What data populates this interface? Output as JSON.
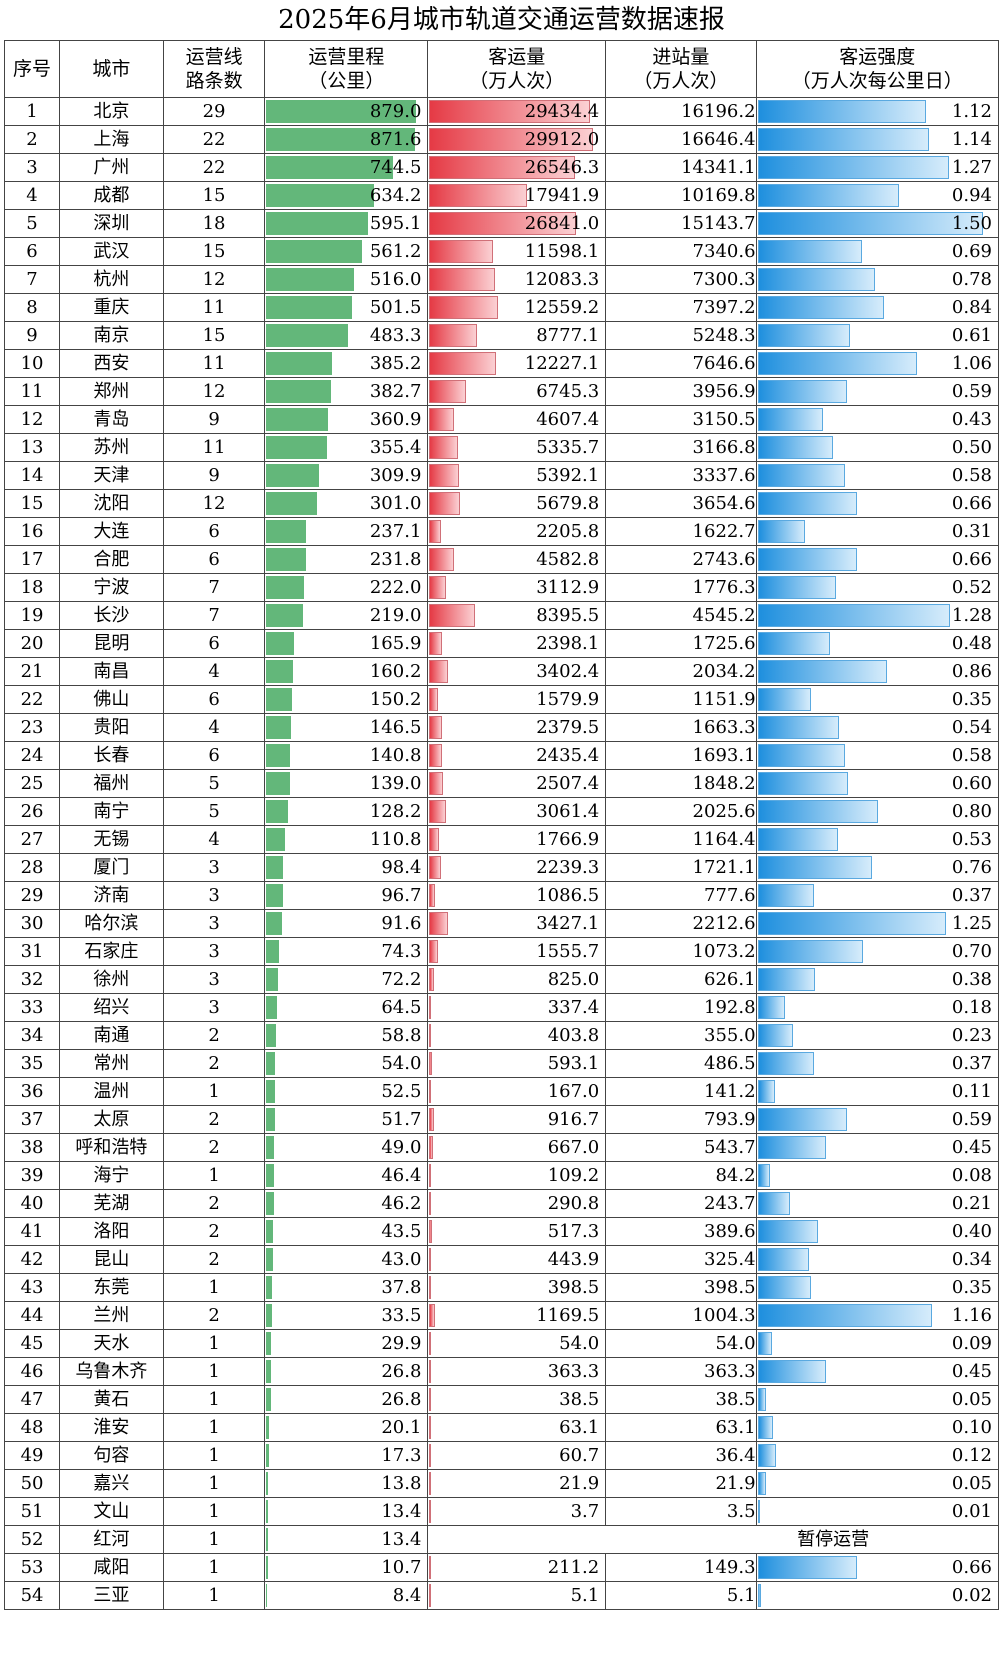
{
  "title": "2025年6月城市轨道交通运营数据速报",
  "headers": {
    "idx": "序号",
    "city": "城市",
    "lines_1": "运营线",
    "lines_2": "路条数",
    "mileage_1": "运营里程",
    "mileage_2": "（公里）",
    "ridership_1": "客运量",
    "ridership_2": "（万人次）",
    "entries_1": "进站量",
    "entries_2": "（万人次）",
    "intensity_1": "客运强度",
    "intensity_2": "（万人次每公里日）"
  },
  "scale": {
    "mileage_max": 879.0,
    "ridership_max": 29912.0,
    "intensity_max": 1.5
  },
  "colors": {
    "mileage_bar": "#63b77a",
    "ridership_bar": "#e53a45",
    "intensity_bar": "#1e8fde"
  },
  "rows": [
    {
      "idx": "1",
      "city": "北京",
      "lines": "29",
      "mileage": "879.0",
      "ridership": "29434.4",
      "entries": "16196.2",
      "intensity": "1.12"
    },
    {
      "idx": "2",
      "city": "上海",
      "lines": "22",
      "mileage": "871.6",
      "ridership": "29912.0",
      "entries": "16646.4",
      "intensity": "1.14"
    },
    {
      "idx": "3",
      "city": "广州",
      "lines": "22",
      "mileage": "744.5",
      "ridership": "26546.3",
      "entries": "14341.1",
      "intensity": "1.27"
    },
    {
      "idx": "4",
      "city": "成都",
      "lines": "15",
      "mileage": "634.2",
      "ridership": "17941.9",
      "entries": "10169.8",
      "intensity": "0.94"
    },
    {
      "idx": "5",
      "city": "深圳",
      "lines": "18",
      "mileage": "595.1",
      "ridership": "26841.0",
      "entries": "15143.7",
      "intensity": "1.50"
    },
    {
      "idx": "6",
      "city": "武汉",
      "lines": "15",
      "mileage": "561.2",
      "ridership": "11598.1",
      "entries": "7340.6",
      "intensity": "0.69"
    },
    {
      "idx": "7",
      "city": "杭州",
      "lines": "12",
      "mileage": "516.0",
      "ridership": "12083.3",
      "entries": "7300.3",
      "intensity": "0.78"
    },
    {
      "idx": "8",
      "city": "重庆",
      "lines": "11",
      "mileage": "501.5",
      "ridership": "12559.2",
      "entries": "7397.2",
      "intensity": "0.84"
    },
    {
      "idx": "9",
      "city": "南京",
      "lines": "15",
      "mileage": "483.3",
      "ridership": "8777.1",
      "entries": "5248.3",
      "intensity": "0.61"
    },
    {
      "idx": "10",
      "city": "西安",
      "lines": "11",
      "mileage": "385.2",
      "ridership": "12227.1",
      "entries": "7646.6",
      "intensity": "1.06"
    },
    {
      "idx": "11",
      "city": "郑州",
      "lines": "12",
      "mileage": "382.7",
      "ridership": "6745.3",
      "entries": "3956.9",
      "intensity": "0.59"
    },
    {
      "idx": "12",
      "city": "青岛",
      "lines": "9",
      "mileage": "360.9",
      "ridership": "4607.4",
      "entries": "3150.5",
      "intensity": "0.43"
    },
    {
      "idx": "13",
      "city": "苏州",
      "lines": "11",
      "mileage": "355.4",
      "ridership": "5335.7",
      "entries": "3166.8",
      "intensity": "0.50"
    },
    {
      "idx": "14",
      "city": "天津",
      "lines": "9",
      "mileage": "309.9",
      "ridership": "5392.1",
      "entries": "3337.6",
      "intensity": "0.58"
    },
    {
      "idx": "15",
      "city": "沈阳",
      "lines": "12",
      "mileage": "301.0",
      "ridership": "5679.8",
      "entries": "3654.6",
      "intensity": "0.66"
    },
    {
      "idx": "16",
      "city": "大连",
      "lines": "6",
      "mileage": "237.1",
      "ridership": "2205.8",
      "entries": "1622.7",
      "intensity": "0.31"
    },
    {
      "idx": "17",
      "city": "合肥",
      "lines": "6",
      "mileage": "231.8",
      "ridership": "4582.8",
      "entries": "2743.6",
      "intensity": "0.66"
    },
    {
      "idx": "18",
      "city": "宁波",
      "lines": "7",
      "mileage": "222.0",
      "ridership": "3112.9",
      "entries": "1776.3",
      "intensity": "0.52"
    },
    {
      "idx": "19",
      "city": "长沙",
      "lines": "7",
      "mileage": "219.0",
      "ridership": "8395.5",
      "entries": "4545.2",
      "intensity": "1.28"
    },
    {
      "idx": "20",
      "city": "昆明",
      "lines": "6",
      "mileage": "165.9",
      "ridership": "2398.1",
      "entries": "1725.6",
      "intensity": "0.48"
    },
    {
      "idx": "21",
      "city": "南昌",
      "lines": "4",
      "mileage": "160.2",
      "ridership": "3402.4",
      "entries": "2034.2",
      "intensity": "0.86"
    },
    {
      "idx": "22",
      "city": "佛山",
      "lines": "6",
      "mileage": "150.2",
      "ridership": "1579.9",
      "entries": "1151.9",
      "intensity": "0.35"
    },
    {
      "idx": "23",
      "city": "贵阳",
      "lines": "4",
      "mileage": "146.5",
      "ridership": "2379.5",
      "entries": "1663.3",
      "intensity": "0.54"
    },
    {
      "idx": "24",
      "city": "长春",
      "lines": "6",
      "mileage": "140.8",
      "ridership": "2435.4",
      "entries": "1693.1",
      "intensity": "0.58"
    },
    {
      "idx": "25",
      "city": "福州",
      "lines": "5",
      "mileage": "139.0",
      "ridership": "2507.4",
      "entries": "1848.2",
      "intensity": "0.60"
    },
    {
      "idx": "26",
      "city": "南宁",
      "lines": "5",
      "mileage": "128.2",
      "ridership": "3061.4",
      "entries": "2025.6",
      "intensity": "0.80"
    },
    {
      "idx": "27",
      "city": "无锡",
      "lines": "4",
      "mileage": "110.8",
      "ridership": "1766.9",
      "entries": "1164.4",
      "intensity": "0.53"
    },
    {
      "idx": "28",
      "city": "厦门",
      "lines": "3",
      "mileage": "98.4",
      "ridership": "2239.3",
      "entries": "1721.1",
      "intensity": "0.76"
    },
    {
      "idx": "29",
      "city": "济南",
      "lines": "3",
      "mileage": "96.7",
      "ridership": "1086.5",
      "entries": "777.6",
      "intensity": "0.37"
    },
    {
      "idx": "30",
      "city": "哈尔滨",
      "lines": "3",
      "mileage": "91.6",
      "ridership": "3427.1",
      "entries": "2212.6",
      "intensity": "1.25"
    },
    {
      "idx": "31",
      "city": "石家庄",
      "lines": "3",
      "mileage": "74.3",
      "ridership": "1555.7",
      "entries": "1073.2",
      "intensity": "0.70"
    },
    {
      "idx": "32",
      "city": "徐州",
      "lines": "3",
      "mileage": "72.2",
      "ridership": "825.0",
      "entries": "626.1",
      "intensity": "0.38"
    },
    {
      "idx": "33",
      "city": "绍兴",
      "lines": "3",
      "mileage": "64.5",
      "ridership": "337.4",
      "entries": "192.8",
      "intensity": "0.18"
    },
    {
      "idx": "34",
      "city": "南通",
      "lines": "2",
      "mileage": "58.8",
      "ridership": "403.8",
      "entries": "355.0",
      "intensity": "0.23"
    },
    {
      "idx": "35",
      "city": "常州",
      "lines": "2",
      "mileage": "54.0",
      "ridership": "593.1",
      "entries": "486.5",
      "intensity": "0.37"
    },
    {
      "idx": "36",
      "city": "温州",
      "lines": "1",
      "mileage": "52.5",
      "ridership": "167.0",
      "entries": "141.2",
      "intensity": "0.11"
    },
    {
      "idx": "37",
      "city": "太原",
      "lines": "2",
      "mileage": "51.7",
      "ridership": "916.7",
      "entries": "793.9",
      "intensity": "0.59"
    },
    {
      "idx": "38",
      "city": "呼和浩特",
      "lines": "2",
      "mileage": "49.0",
      "ridership": "667.0",
      "entries": "543.7",
      "intensity": "0.45"
    },
    {
      "idx": "39",
      "city": "海宁",
      "lines": "1",
      "mileage": "46.4",
      "ridership": "109.2",
      "entries": "84.2",
      "intensity": "0.08"
    },
    {
      "idx": "40",
      "city": "芜湖",
      "lines": "2",
      "mileage": "46.2",
      "ridership": "290.8",
      "entries": "243.7",
      "intensity": "0.21"
    },
    {
      "idx": "41",
      "city": "洛阳",
      "lines": "2",
      "mileage": "43.5",
      "ridership": "517.3",
      "entries": "389.6",
      "intensity": "0.40"
    },
    {
      "idx": "42",
      "city": "昆山",
      "lines": "2",
      "mileage": "43.0",
      "ridership": "443.9",
      "entries": "325.4",
      "intensity": "0.34"
    },
    {
      "idx": "43",
      "city": "东莞",
      "lines": "1",
      "mileage": "37.8",
      "ridership": "398.5",
      "entries": "398.5",
      "intensity": "0.35"
    },
    {
      "idx": "44",
      "city": "兰州",
      "lines": "2",
      "mileage": "33.5",
      "ridership": "1169.5",
      "entries": "1004.3",
      "intensity": "1.16"
    },
    {
      "idx": "45",
      "city": "天水",
      "lines": "1",
      "mileage": "29.9",
      "ridership": "54.0",
      "entries": "54.0",
      "intensity": "0.09"
    },
    {
      "idx": "46",
      "city": "乌鲁木齐",
      "lines": "1",
      "mileage": "26.8",
      "ridership": "363.3",
      "entries": "363.3",
      "intensity": "0.45"
    },
    {
      "idx": "47",
      "city": "黄石",
      "lines": "1",
      "mileage": "26.8",
      "ridership": "38.5",
      "entries": "38.5",
      "intensity": "0.05"
    },
    {
      "idx": "48",
      "city": "淮安",
      "lines": "1",
      "mileage": "20.1",
      "ridership": "63.1",
      "entries": "63.1",
      "intensity": "0.10"
    },
    {
      "idx": "49",
      "city": "句容",
      "lines": "1",
      "mileage": "17.3",
      "ridership": "60.7",
      "entries": "36.4",
      "intensity": "0.12"
    },
    {
      "idx": "50",
      "city": "嘉兴",
      "lines": "1",
      "mileage": "13.8",
      "ridership": "21.9",
      "entries": "21.9",
      "intensity": "0.05"
    },
    {
      "idx": "51",
      "city": "文山",
      "lines": "1",
      "mileage": "13.4",
      "ridership": "3.7",
      "entries": "3.5",
      "intensity": "0.01"
    },
    {
      "idx": "52",
      "city": "红河",
      "lines": "1",
      "mileage": "13.4",
      "suspended": "暂停运营"
    },
    {
      "idx": "53",
      "city": "咸阳",
      "lines": "1",
      "mileage": "10.7",
      "ridership": "211.2",
      "entries": "149.3",
      "intensity": "0.66"
    },
    {
      "idx": "54",
      "city": "三亚",
      "lines": "1",
      "mileage": "8.4",
      "ridership": "5.1",
      "entries": "5.1",
      "intensity": "0.02"
    }
  ]
}
